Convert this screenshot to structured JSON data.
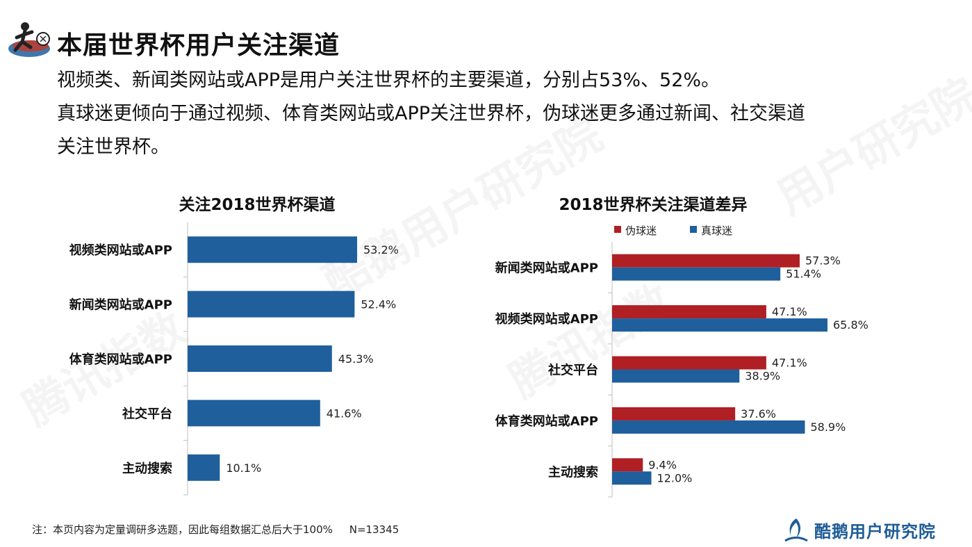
{
  "page": {
    "title": "本届世界杯用户关注渠道",
    "subtitle_lines": [
      "视频类、新闻类网站或APP是用户关注世界杯的主要渠道，分别占53%、52%。",
      "真球迷更倾向于通过视频、体育类网站或APP关注世界杯，伪球迷更多通过新闻、社交渠道",
      "关注世界杯。"
    ],
    "footnote": "注：本页内容为定量调研多选题，因此每组数据汇总后大于100%     N=13345",
    "brand": "酷鹅用户研究院",
    "watermarks": [
      "腾讯指数",
      "酷鹅用户研究院",
      "腾讯指数",
      "用户研究院"
    ]
  },
  "chart_data": [
    {
      "type": "bar",
      "orientation": "horizontal",
      "title": "关注2018世界杯渠道",
      "categories": [
        "视频类网站或APP",
        "新闻类网站或APP",
        "体育类网站或APP",
        "社交平台",
        "主动搜索"
      ],
      "values": [
        53.2,
        52.4,
        45.3,
        41.6,
        10.1
      ],
      "value_labels": [
        "53.2%",
        "52.4%",
        "45.3%",
        "41.6%",
        "10.1%"
      ],
      "color": "#1f5f9c",
      "xlim": [
        0,
        70
      ]
    },
    {
      "type": "bar",
      "orientation": "horizontal",
      "title": "2018世界杯关注渠道差异",
      "categories": [
        "新闻类网站或APP",
        "视频类网站或APP",
        "社交平台",
        "体育类网站或APP",
        "主动搜索"
      ],
      "series": [
        {
          "name": "伪球迷",
          "color": "#b01f24",
          "values": [
            57.3,
            47.1,
            47.1,
            37.6,
            9.4
          ],
          "labels": [
            "57.3%",
            "47.1%",
            "47.1%",
            "37.6%",
            "9.4%"
          ]
        },
        {
          "name": "真球迷",
          "color": "#1f5f9c",
          "values": [
            51.4,
            65.8,
            38.9,
            58.9,
            12.0
          ],
          "labels": [
            "51.4%",
            "65.8%",
            "38.9%",
            "58.9%",
            "12.0%"
          ]
        }
      ],
      "legend": "top",
      "xlim": [
        0,
        70
      ]
    }
  ]
}
